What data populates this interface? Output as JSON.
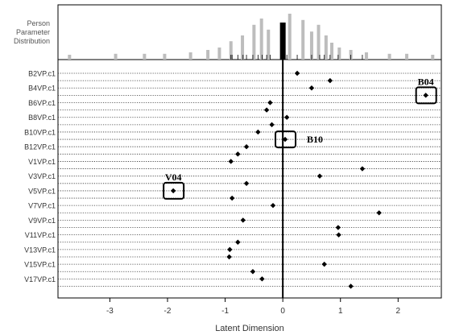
{
  "panel_title": [
    "Person",
    "Parameter",
    "Distribution"
  ],
  "chart_data": {
    "type": "scatter",
    "xlabel": "Latent Dimension",
    "xlim": [
      -3.9,
      2.75
    ],
    "xticks": [
      -3,
      -2,
      -1,
      0,
      1,
      2
    ],
    "reference_line_x": 0,
    "items": [
      "B2VP.c1",
      "B4VP.c1",
      "B6VP.c1",
      "B8VP.c1",
      "B10VP.c1",
      "B12VP.c1",
      "V1VP.c1",
      "V3VP.c1",
      "V5VP.c1",
      "V7VP.c1",
      "V9VP.c1",
      "V11VP.c1",
      "V13VP.c1",
      "V15VP.c1",
      "V17VP.c1"
    ],
    "points": [
      {
        "row": 0,
        "x": 0.25
      },
      {
        "row": 1,
        "x": 0.82
      },
      {
        "row": 2,
        "x": 0.5
      },
      {
        "row": 3,
        "x": 2.48
      },
      {
        "row": 4,
        "x": -0.22
      },
      {
        "row": 5,
        "x": -0.28
      },
      {
        "row": 6,
        "x": 0.07
      },
      {
        "row": 7,
        "x": -0.19
      },
      {
        "row": 8,
        "x": -0.43
      },
      {
        "row": 9,
        "x": 0.04
      },
      {
        "row": 10,
        "x": -0.63
      },
      {
        "row": 11,
        "x": -0.78
      },
      {
        "row": 12,
        "x": -0.9
      },
      {
        "row": 13,
        "x": 1.38
      },
      {
        "row": 14,
        "x": 0.64
      },
      {
        "row": 15,
        "x": -0.63
      },
      {
        "row": 16,
        "x": -1.9
      },
      {
        "row": 17,
        "x": -0.88
      },
      {
        "row": 18,
        "x": -0.17
      },
      {
        "row": 19,
        "x": 1.67
      },
      {
        "row": 20,
        "x": -0.69
      },
      {
        "row": 21,
        "x": 0.96
      },
      {
        "row": 22,
        "x": 0.97
      },
      {
        "row": 23,
        "x": -0.78
      },
      {
        "row": 24,
        "x": -0.92
      },
      {
        "row": 25,
        "x": -0.93
      },
      {
        "row": 26,
        "x": 0.72
      },
      {
        "row": 27,
        "x": -0.52
      },
      {
        "row": 28,
        "x": -0.36
      },
      {
        "row": 29,
        "x": 1.18
      }
    ],
    "person_distribution": [
      {
        "x": -3.7,
        "h": 0.1
      },
      {
        "x": -2.9,
        "h": 0.12
      },
      {
        "x": -2.4,
        "h": 0.12
      },
      {
        "x": -2.05,
        "h": 0.12
      },
      {
        "x": -1.6,
        "h": 0.15
      },
      {
        "x": -1.3,
        "h": 0.2
      },
      {
        "x": -1.1,
        "h": 0.25
      },
      {
        "x": -0.9,
        "h": 0.38
      },
      {
        "x": -0.7,
        "h": 0.5
      },
      {
        "x": -0.5,
        "h": 0.72
      },
      {
        "x": -0.37,
        "h": 0.85
      },
      {
        "x": -0.25,
        "h": 0.62
      },
      {
        "x": 0.12,
        "h": 0.95
      },
      {
        "x": 0.35,
        "h": 0.82
      },
      {
        "x": 0.5,
        "h": 0.58
      },
      {
        "x": 0.62,
        "h": 0.72
      },
      {
        "x": 0.75,
        "h": 0.5
      },
      {
        "x": 0.85,
        "h": 0.35
      },
      {
        "x": 0.98,
        "h": 0.25
      },
      {
        "x": 1.18,
        "h": 0.2
      },
      {
        "x": 1.45,
        "h": 0.15
      },
      {
        "x": 1.85,
        "h": 0.12
      },
      {
        "x": 2.15,
        "h": 0.12
      },
      {
        "x": 2.6,
        "h": 0.1
      }
    ],
    "thresholds": [
      -0.9,
      -0.88,
      -0.78,
      -0.69,
      -0.63,
      -0.52,
      -0.43,
      -0.36,
      -0.28,
      -0.22,
      0.07,
      0.25,
      0.5,
      0.64,
      0.72,
      0.82,
      0.96,
      1.18,
      1.38
    ],
    "highlight_boxes": [
      {
        "label": "B04",
        "row": 3,
        "x": 2.48,
        "label_pos": "above"
      },
      {
        "label": "B10",
        "row": 9,
        "x": 0.04,
        "label_pos": "right"
      },
      {
        "label": "V04",
        "row": 16,
        "x": -1.9,
        "label_pos": "above"
      }
    ]
  }
}
